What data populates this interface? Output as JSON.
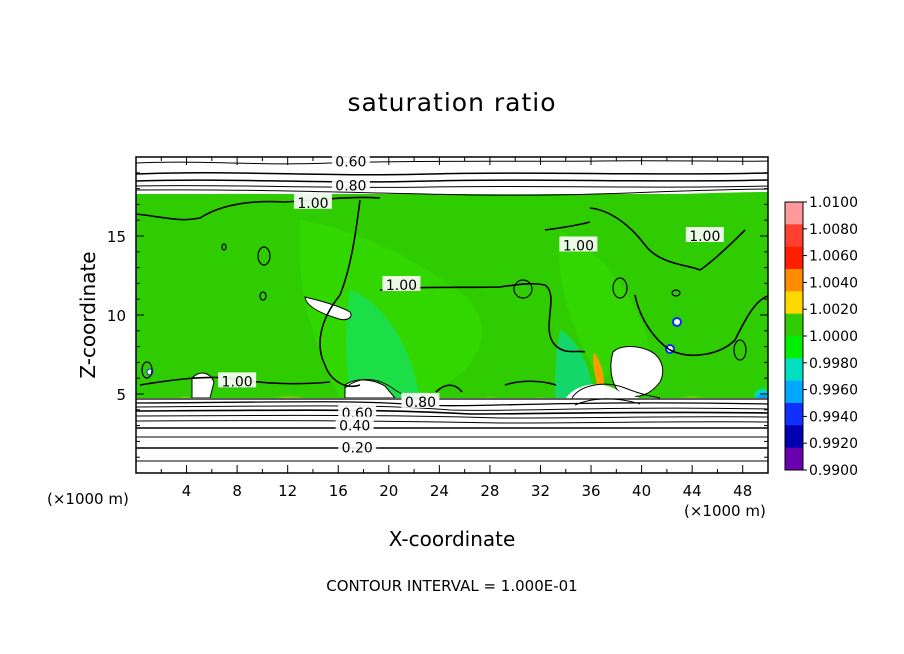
{
  "chart_data": {
    "type": "heatmap",
    "title": "saturation ratio",
    "xlabel": "X-coordinate",
    "ylabel": "Z-coordinate",
    "x_unit_note": "(×1000 m)",
    "xlim": [
      0,
      50
    ],
    "ylim": [
      0,
      20
    ],
    "x_ticks": [
      "4",
      "8",
      "12",
      "16",
      "20",
      "24",
      "28",
      "32",
      "36",
      "40",
      "44",
      "48"
    ],
    "y_ticks": [
      "5",
      "10",
      "15"
    ],
    "contour_note": "CONTOUR INTERVAL = 1.000E-01",
    "colorbar": {
      "labels": [
        "1.0100",
        "1.0080",
        "1.0060",
        "1.0040",
        "1.0020",
        "1.0000",
        "0.9980",
        "0.9960",
        "0.9940",
        "0.9920",
        "0.9900"
      ],
      "colors": [
        "#ff9a9a",
        "#ff4030",
        "#ff1f00",
        "#ff8c00",
        "#ffd800",
        "#2ecc00",
        "#00ee00",
        "#00e0c0",
        "#00a8ff",
        "#1030ff",
        "#0000b0",
        "#6a00b0"
      ]
    },
    "contour_labels": [
      {
        "text": "0.60",
        "x": 17,
        "z": 19.7
      },
      {
        "text": "0.80",
        "x": 17,
        "z": 18.2
      },
      {
        "text": "1.00",
        "x": 14,
        "z": 17.1
      },
      {
        "text": "1.00",
        "x": 35,
        "z": 14.4
      },
      {
        "text": "1.00",
        "x": 45,
        "z": 15.0
      },
      {
        "text": "1.00",
        "x": 21,
        "z": 11.9
      },
      {
        "text": "1.00",
        "x": 8,
        "z": 5.8
      },
      {
        "text": "0.80",
        "x": 22.5,
        "z": 4.5
      },
      {
        "text": "0.60",
        "x": 17.5,
        "z": 3.8
      },
      {
        "text": "0.40",
        "x": 17.3,
        "z": 3.0
      },
      {
        "text": "0.20",
        "x": 17.5,
        "z": 1.6
      }
    ]
  }
}
